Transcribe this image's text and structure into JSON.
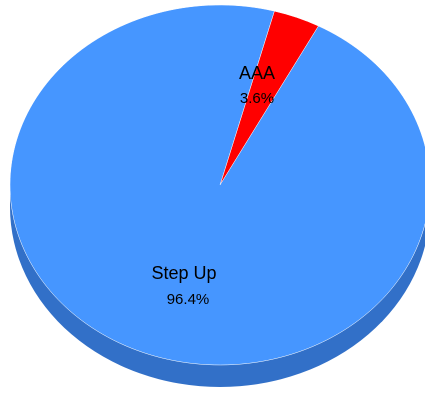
{
  "chart_data": {
    "type": "pie",
    "style": "3d",
    "slices": [
      {
        "name": "Step Up",
        "percent_label": "96.4%",
        "value": 96.4,
        "color": "#4696FF",
        "side_color": "#3270C8"
      },
      {
        "name": "AAA",
        "percent_label": "3.6%",
        "value": 3.6,
        "color": "#FF0000",
        "side_color": "#B40000"
      }
    ],
    "legend": "none",
    "grid": false
  }
}
